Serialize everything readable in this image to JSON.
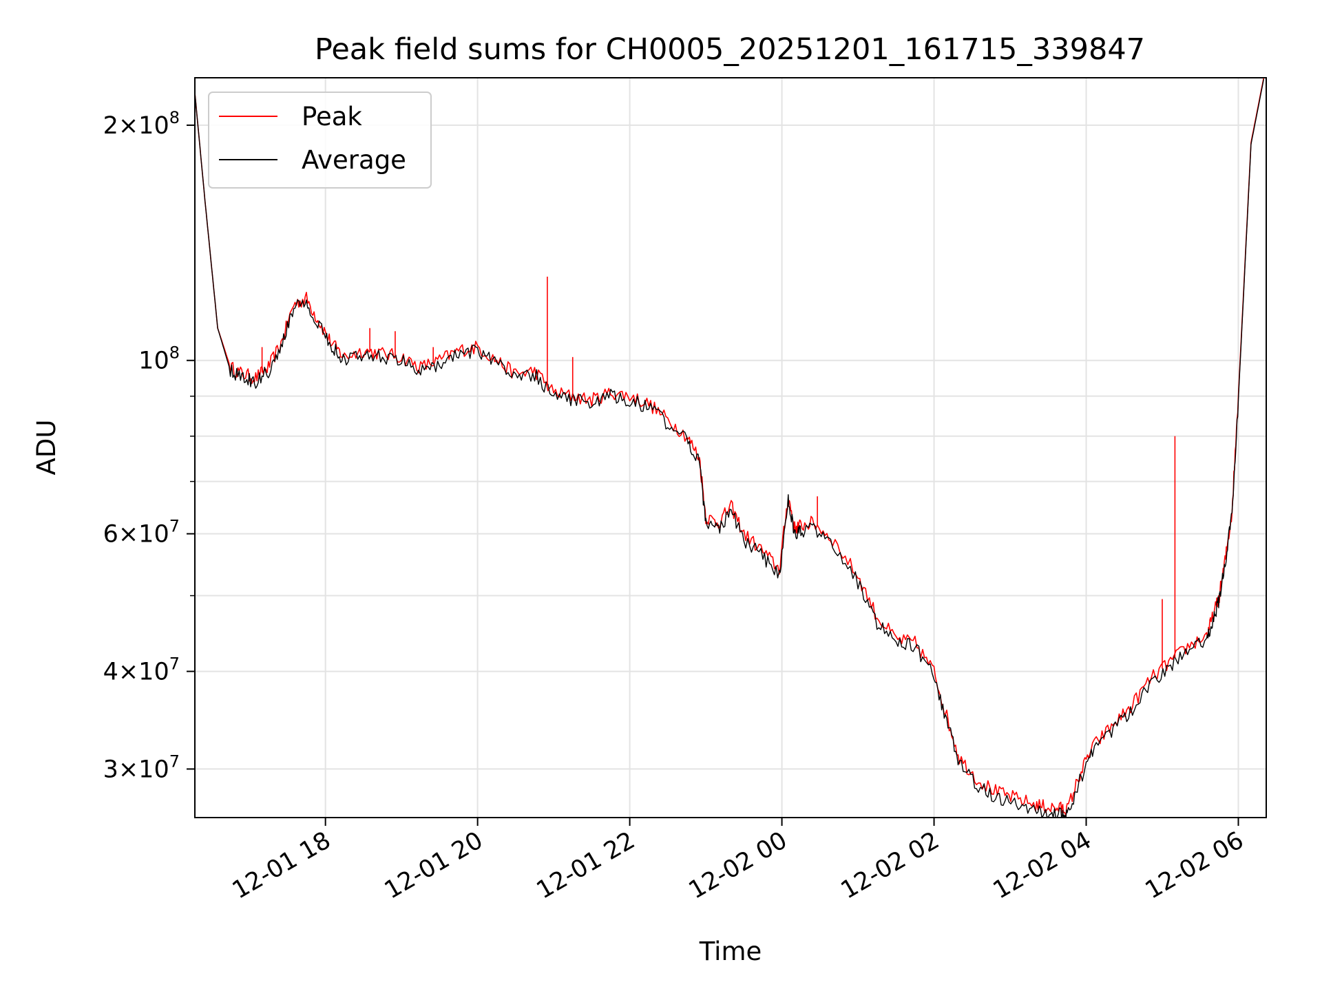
{
  "chart_data": {
    "type": "line",
    "title": "Peak field sums for CH0005_20251201_161715_339847",
    "xlabel": "Time",
    "ylabel": "ADU",
    "yscale": "log",
    "grid": true,
    "legend_position": "top-left",
    "x_tick_labels": [
      "12-01 18",
      "12-01 20",
      "12-01 22",
      "12-02 00",
      "12-02 02",
      "12-02 04",
      "12-02 06"
    ],
    "x_tick_values": [
      "2025-12-01T18:00",
      "2025-12-01T20:00",
      "2025-12-01T22:00",
      "2025-12-02T00:00",
      "2025-12-02T02:00",
      "2025-12-02T04:00",
      "2025-12-02T06:00"
    ],
    "xlim": [
      "2025-12-01T16:17",
      "2025-12-02T06:22"
    ],
    "ylim": [
      26000000,
      230000000
    ],
    "y_major_ticks": [
      {
        "value": 30000000,
        "mant": "3",
        "exp": "7"
      },
      {
        "value": 40000000,
        "mant": "4",
        "exp": "7"
      },
      {
        "value": 60000000,
        "mant": "6",
        "exp": "7"
      },
      {
        "value": 100000000,
        "mant": "",
        "exp": "8"
      },
      {
        "value": 200000000,
        "mant": "2",
        "exp": "8"
      }
    ],
    "y_minor_ticks": [
      50000000,
      70000000,
      80000000,
      90000000
    ],
    "x": [
      "2025-12-01T16:17",
      "2025-12-01T16:25",
      "2025-12-01T16:35",
      "2025-12-01T16:45",
      "2025-12-01T16:55",
      "2025-12-01T17:05",
      "2025-12-01T17:15",
      "2025-12-01T17:25",
      "2025-12-01T17:35",
      "2025-12-01T17:45",
      "2025-12-01T17:55",
      "2025-12-01T18:05",
      "2025-12-01T18:15",
      "2025-12-01T18:30",
      "2025-12-01T18:45",
      "2025-12-01T19:00",
      "2025-12-01T19:15",
      "2025-12-01T19:30",
      "2025-12-01T19:45",
      "2025-12-01T20:00",
      "2025-12-01T20:15",
      "2025-12-01T20:30",
      "2025-12-01T20:45",
      "2025-12-01T21:00",
      "2025-12-01T21:15",
      "2025-12-01T21:30",
      "2025-12-01T21:45",
      "2025-12-01T22:00",
      "2025-12-01T22:15",
      "2025-12-01T22:30",
      "2025-12-01T22:45",
      "2025-12-01T22:55",
      "2025-12-01T23:00",
      "2025-12-01T23:10",
      "2025-12-01T23:20",
      "2025-12-01T23:30",
      "2025-12-01T23:45",
      "2025-12-01T23:58",
      "2025-12-02T00:05",
      "2025-12-02T00:10",
      "2025-12-02T00:15",
      "2025-12-02T00:25",
      "2025-12-02T00:40",
      "2025-12-02T01:00",
      "2025-12-02T01:15",
      "2025-12-02T01:30",
      "2025-12-02T01:45",
      "2025-12-02T02:00",
      "2025-12-02T02:10",
      "2025-12-02T02:20",
      "2025-12-02T02:35",
      "2025-12-02T02:50",
      "2025-12-02T03:05",
      "2025-12-02T03:20",
      "2025-12-02T03:30",
      "2025-12-02T03:40",
      "2025-12-02T03:45",
      "2025-12-02T03:55",
      "2025-12-02T04:05",
      "2025-12-02T04:20",
      "2025-12-02T04:35",
      "2025-12-02T04:50",
      "2025-12-02T05:05",
      "2025-12-02T05:20",
      "2025-12-02T05:35",
      "2025-12-02T05:40",
      "2025-12-02T05:45",
      "2025-12-02T05:50",
      "2025-12-02T05:55",
      "2025-12-02T06:00",
      "2025-12-02T06:10",
      "2025-12-02T06:20"
    ],
    "series": [
      {
        "name": "Peak",
        "color": "#ff0000",
        "values": [
          220000000,
          160000000,
          110000000,
          98000000,
          96000000,
          95000000,
          98000000,
          105000000,
          118000000,
          120000000,
          112000000,
          105000000,
          101000000,
          103000000,
          102000000,
          101000000,
          98000000,
          100000000,
          103000000,
          104000000,
          100000000,
          96000000,
          97000000,
          91000000,
          90000000,
          89000000,
          91000000,
          90000000,
          88000000,
          84000000,
          80000000,
          75000000,
          63000000,
          62000000,
          65000000,
          60000000,
          57000000,
          54000000,
          67000000,
          61000000,
          61500000,
          62000000,
          59000000,
          53000000,
          47000000,
          44000000,
          43500000,
          40000000,
          35000000,
          31000000,
          29000000,
          28000000,
          27500000,
          27000000,
          26800000,
          26700000,
          26600000,
          29500000,
          32000000,
          34000000,
          36000000,
          39000000,
          41000000,
          43000000,
          44500000,
          47000000,
          50000000,
          56000000,
          64000000,
          90000000,
          190000000,
          230000000
        ]
      },
      {
        "name": "Average",
        "color": "#000000",
        "values": [
          220000000,
          160000000,
          110000000,
          97000000,
          95000000,
          94000000,
          97000000,
          104000000,
          117000000,
          119000000,
          111000000,
          104000000,
          100000000,
          102000000,
          101000000,
          100000000,
          97000000,
          99000000,
          102000000,
          103000000,
          99000000,
          95000000,
          96000000,
          90000000,
          89000000,
          88000000,
          90000000,
          89000000,
          87000000,
          83000000,
          79000000,
          74000000,
          62000000,
          61000000,
          64000000,
          59000000,
          56000000,
          53000000,
          66000000,
          60000000,
          60500000,
          61000000,
          58000000,
          52000000,
          46000000,
          43500000,
          43000000,
          39500000,
          34500000,
          30500000,
          28500000,
          27500000,
          27000000,
          26500000,
          26300000,
          26200000,
          26100000,
          29000000,
          31500000,
          33500000,
          35500000,
          38500000,
          40500000,
          42500000,
          44000000,
          46500000,
          49500000,
          55500000,
          63500000,
          89000000,
          189000000,
          229000000
        ]
      }
    ],
    "spikes": [
      {
        "x": "2025-12-01T17:10",
        "y": 104000000
      },
      {
        "x": "2025-12-01T18:35",
        "y": 110000000
      },
      {
        "x": "2025-12-01T18:55",
        "y": 109000000
      },
      {
        "x": "2025-12-01T19:25",
        "y": 104000000
      },
      {
        "x": "2025-12-01T20:55",
        "y": 128000000
      },
      {
        "x": "2025-12-01T21:15",
        "y": 101000000
      },
      {
        "x": "2025-12-02T00:28",
        "y": 67000000
      },
      {
        "x": "2025-12-02T05:00",
        "y": 49500000
      },
      {
        "x": "2025-12-02T05:10",
        "y": 80000000
      }
    ]
  }
}
